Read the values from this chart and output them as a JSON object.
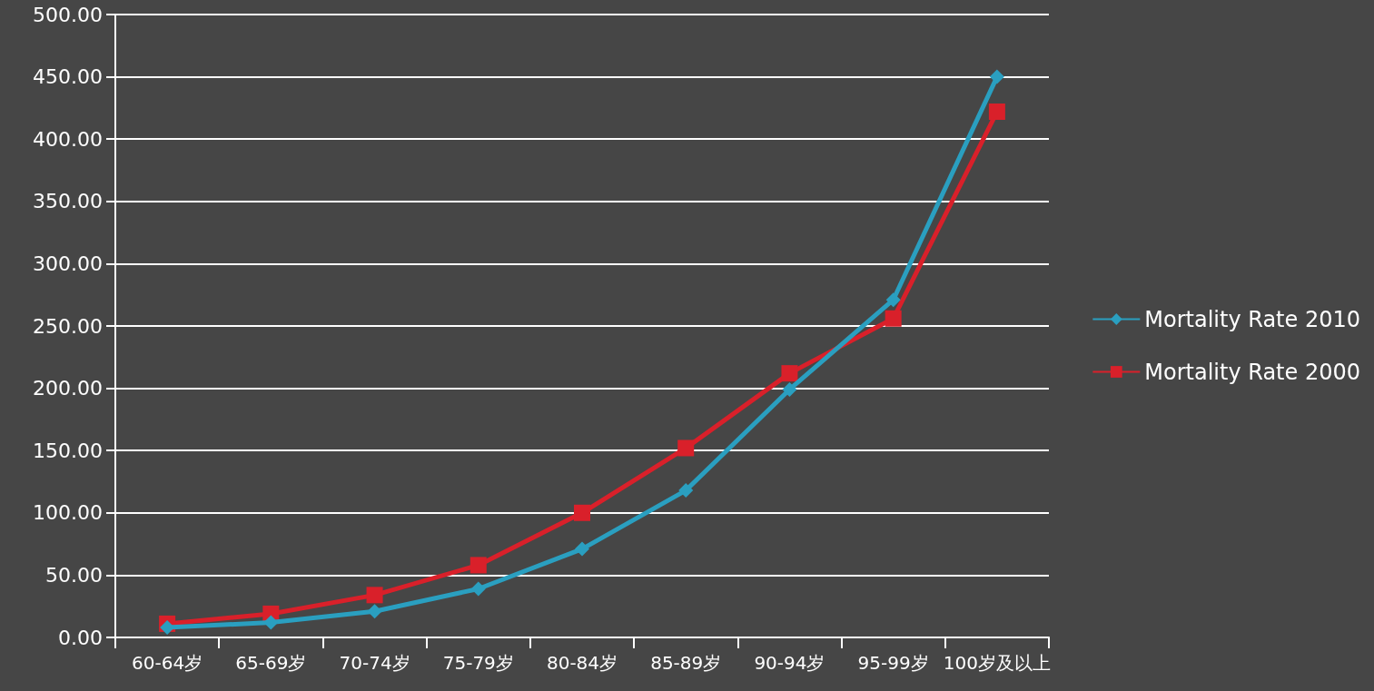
{
  "chart_data": {
    "type": "line",
    "categories": [
      "60-64岁",
      "65-69岁",
      "70-74岁",
      "75-79岁",
      "80-84岁",
      "85-89岁",
      "90-94岁",
      "95-99岁",
      "100岁及以上"
    ],
    "series": [
      {
        "name": "Mortality Rate 2010",
        "color": "#2a9fc0",
        "marker": "diamond",
        "values": [
          8,
          12,
          21,
          39,
          71,
          118,
          199,
          271,
          450
        ]
      },
      {
        "name": "Mortality Rate 2000",
        "color": "#d9202a",
        "marker": "square",
        "values": [
          11,
          19,
          34,
          58,
          100,
          152,
          212,
          256,
          422
        ]
      }
    ],
    "ylim": [
      0,
      500
    ],
    "yticks": [
      {
        "value": 0,
        "label": "0.00"
      },
      {
        "value": 50,
        "label": "50.00"
      },
      {
        "value": 100,
        "label": "100.00"
      },
      {
        "value": 150,
        "label": "150.00"
      },
      {
        "value": 200,
        "label": "200.00"
      },
      {
        "value": 250,
        "label": "250.00"
      },
      {
        "value": 300,
        "label": "300.00"
      },
      {
        "value": 350,
        "label": "350.00"
      },
      {
        "value": 400,
        "label": "400.00"
      },
      {
        "value": 450,
        "label": "450.00"
      },
      {
        "value": 500,
        "label": "500.00"
      }
    ],
    "grid": "y",
    "legend": "right",
    "line_style": "solid"
  }
}
